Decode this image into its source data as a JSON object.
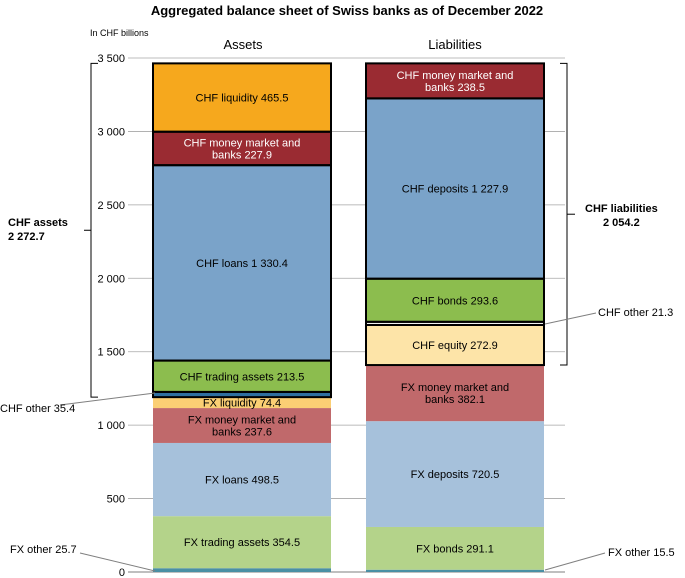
{
  "chart_data": {
    "type": "bar",
    "title": "Aggregated balance sheet of Swiss banks as of December 2022",
    "unit_label": "In CHF billions",
    "categories": [
      "Assets",
      "Liabilities"
    ],
    "ylim": [
      0,
      3500
    ],
    "y_ticks": [
      "0",
      "500",
      "1 000",
      "1 500",
      "2 000",
      "2 500",
      "3 000",
      "3 500"
    ],
    "grid": true,
    "stacks": [
      {
        "category": "Assets",
        "segments": [
          {
            "name": "FX other",
            "value": 25.7,
            "label": "",
            "color": "#4a8fa4"
          },
          {
            "name": "FX trading assets",
            "value": 354.5,
            "label": "FX trading assets 354.5",
            "color": "#b4d38a"
          },
          {
            "name": "FX loans",
            "value": 498.5,
            "label": "FX loans 498.5",
            "color": "#a6c1db"
          },
          {
            "name": "FX money market and banks",
            "value": 237.6,
            "label": "FX money market and\nbanks 237.6",
            "color": "#c0696b"
          },
          {
            "name": "FX liquidity",
            "value": 74.4,
            "label": "FX liquidity 74.4",
            "color": "#fbcf74"
          },
          {
            "name": "CHF other",
            "value": 35.4,
            "label": "",
            "color": "#2e6fa0",
            "chf": true
          },
          {
            "name": "CHF trading assets",
            "value": 213.5,
            "label": "CHF trading assets 213.5",
            "color": "#8cbd4e",
            "chf": true
          },
          {
            "name": "CHF loans",
            "value": 1330.4,
            "label": "CHF loans 1 330.4",
            "color": "#7aa3c9",
            "chf": true
          },
          {
            "name": "CHF money market and banks",
            "value": 227.9,
            "label": "CHF money market and\nbanks 227.9",
            "color": "#9a2b32",
            "text_color": "#ffffff",
            "chf": true
          },
          {
            "name": "CHF liquidity",
            "value": 465.5,
            "label": "CHF liquidity 465.5",
            "color": "#f6a81d",
            "chf": true
          }
        ]
      },
      {
        "category": "Liabilities",
        "segments": [
          {
            "name": "FX other",
            "value": 15.5,
            "label": "",
            "color": "#4a8fa4"
          },
          {
            "name": "FX bonds",
            "value": 291.1,
            "label": "FX bonds 291.1",
            "color": "#b4d38a"
          },
          {
            "name": "FX deposits",
            "value": 720.5,
            "label": "FX deposits 720.5",
            "color": "#a6c1db"
          },
          {
            "name": "FX money market and banks",
            "value": 382.1,
            "label": "FX money market and\nbanks 382.1",
            "color": "#c0696b"
          },
          {
            "name": "CHF equity",
            "value": 272.9,
            "label": "CHF equity 272.9",
            "color": "#fde4a8",
            "chf": true
          },
          {
            "name": "CHF other",
            "value": 21.3,
            "label": "",
            "color": "#ffffff",
            "chf": true
          },
          {
            "name": "CHF bonds",
            "value": 293.6,
            "label": "CHF bonds 293.6",
            "color": "#8cbd4e",
            "chf": true
          },
          {
            "name": "CHF deposits",
            "value": 1227.9,
            "label": "CHF deposits 1 227.9",
            "color": "#7aa3c9",
            "chf": true
          },
          {
            "name": "CHF money market and banks",
            "value": 238.5,
            "label": "CHF money market and\nbanks 238.5",
            "color": "#9a2b32",
            "text_color": "#ffffff",
            "chf": true
          }
        ]
      }
    ],
    "totals": {
      "chf_assets": {
        "label": "CHF assets",
        "value": "2 272.7"
      },
      "chf_liabilities": {
        "label": "CHF liabilities",
        "value": "2 054.2"
      }
    },
    "callouts": {
      "assets_chf_other": "CHF other 35.4",
      "assets_fx_other": "FX other 25.7",
      "liabilities_chf_other": "CHF other  21.3",
      "liabilities_fx_other": "FX other  15.5"
    }
  }
}
